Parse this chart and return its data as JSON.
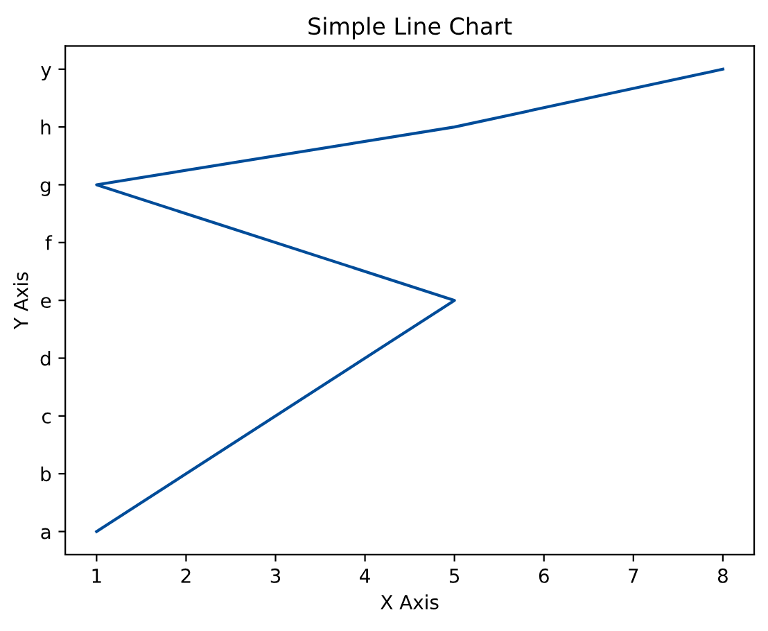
{
  "chart_data": {
    "type": "line",
    "title": "Simple Line Chart",
    "xlabel": "X Axis",
    "ylabel": "Y Axis",
    "orientation": "horizontal",
    "categories": [
      "y",
      "h",
      "g",
      "f",
      "e",
      "d",
      "c",
      "b",
      "a"
    ],
    "series": [
      {
        "color": "#004c99",
        "values": [
          8,
          5,
          1,
          null,
          5,
          null,
          null,
          null,
          1
        ]
      }
    ],
    "xlim": [
      0.65,
      8.35
    ],
    "xticks": [
      1,
      2,
      3,
      4,
      5,
      6,
      7,
      8
    ],
    "grid": false,
    "legend": false
  }
}
